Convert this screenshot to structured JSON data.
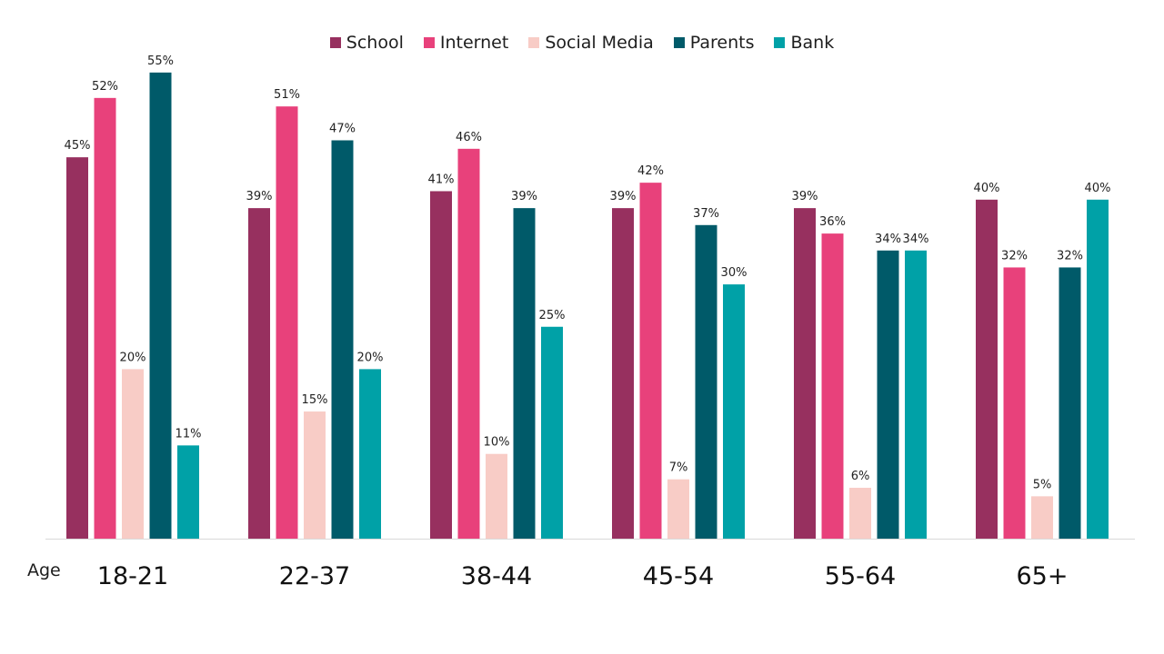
{
  "chart_data": {
    "type": "bar",
    "xlabel": "Age",
    "categories": [
      "18-21",
      "22-37",
      "38-44",
      "45-54",
      "55-64",
      "65+"
    ],
    "series": [
      {
        "name": "School",
        "color": "#97305F",
        "values": [
          45,
          39,
          41,
          39,
          39,
          40
        ]
      },
      {
        "name": "Internet",
        "color": "#E8417B",
        "values": [
          52,
          51,
          46,
          42,
          36,
          32
        ]
      },
      {
        "name": "Social Media",
        "color": "#F8CCC6",
        "values": [
          20,
          15,
          10,
          7,
          6,
          5
        ]
      },
      {
        "name": "Parents",
        "color": "#005A69",
        "values": [
          55,
          47,
          39,
          37,
          34,
          32
        ]
      },
      {
        "name": "Bank",
        "color": "#00A1A7",
        "values": [
          11,
          20,
          25,
          30,
          34,
          40
        ]
      }
    ],
    "value_suffix": "%",
    "ylim": [
      0,
      55
    ],
    "grid": false,
    "legend": "top-center"
  }
}
